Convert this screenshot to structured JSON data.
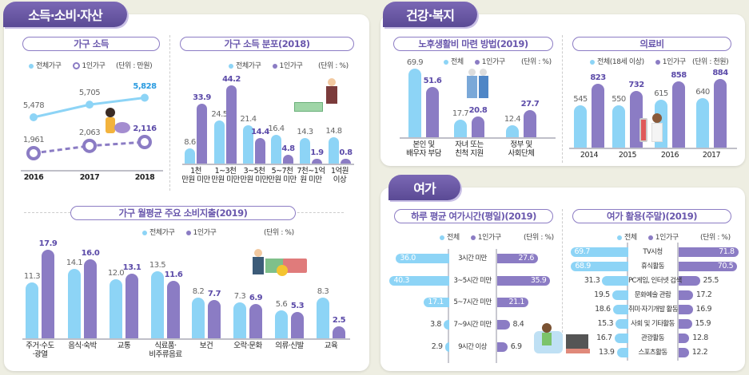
{
  "sections": {
    "income": {
      "tag": "소득·소비·자산"
    },
    "health": {
      "tag": "건강·복지"
    },
    "leisure": {
      "tag": "여가"
    }
  },
  "colors": {
    "all": "#8dd4f6",
    "single": "#8b7cc4",
    "accent_text": "#5b4aa8",
    "tag": "#6a58ad"
  },
  "chart_data": [
    {
      "id": "income",
      "type": "line",
      "title": "가구 소득",
      "unit": "(단위 : 만원)",
      "legend": [
        "전체가구",
        "1인가구"
      ],
      "categories": [
        "2016",
        "2017",
        "2018"
      ],
      "series": [
        {
          "name": "전체가구",
          "values": [
            5478,
            5705,
            5828
          ],
          "labels": [
            "5,478",
            "5,705",
            "5,828"
          ]
        },
        {
          "name": "1인가구",
          "values": [
            1961,
            2063,
            2116
          ],
          "labels": [
            "1,961",
            "2,063",
            "2,116"
          ]
        }
      ]
    },
    {
      "id": "dist",
      "type": "bar",
      "title": "가구 소득 분포(2018)",
      "unit": "(단위 : %)",
      "legend": [
        "전체가구",
        "1인가구"
      ],
      "categories": [
        "1천\n만원 미만",
        "1~3천\n만원 미만",
        "3~5천\n만원 미만",
        "5~7천\n만원 미만",
        "7천~1억\n원 미만",
        "1억원\n이상"
      ],
      "series": [
        {
          "name": "전체가구",
          "values": [
            8.6,
            24.5,
            21.4,
            16.4,
            14.3,
            14.8
          ]
        },
        {
          "name": "1인가구",
          "values": [
            33.9,
            44.2,
            14.4,
            4.8,
            1.9,
            0.8
          ]
        }
      ]
    },
    {
      "id": "spend",
      "type": "bar",
      "title": "가구 월평균 주요 소비지출(2019)",
      "unit": "(단위 : %)",
      "legend": [
        "전체가구",
        "1인가구"
      ],
      "categories": [
        "주거·수도\n·광열",
        "음식·숙박",
        "교통",
        "식료품·\n비주류음료",
        "보건",
        "오락·문화",
        "의류·신발",
        "교육"
      ],
      "series": [
        {
          "name": "전체가구",
          "values": [
            11.3,
            14.1,
            12.0,
            13.5,
            8.2,
            7.3,
            5.6,
            8.3
          ]
        },
        {
          "name": "1인가구",
          "values": [
            17.9,
            16.0,
            13.1,
            11.6,
            7.7,
            6.9,
            5.3,
            2.5
          ]
        }
      ]
    },
    {
      "id": "retire",
      "type": "bar",
      "title": "노후생활비 마련 방법(2019)",
      "unit": "(단위 : %)",
      "legend": [
        "전체",
        "1인가구"
      ],
      "categories": [
        "본인 및\n배우자 부담",
        "자녀 또는\n친척 지원",
        "정부 및\n사회단체"
      ],
      "series": [
        {
          "name": "전체",
          "values": [
            69.9,
            17.7,
            12.4
          ]
        },
        {
          "name": "1인가구",
          "values": [
            51.6,
            20.8,
            27.7
          ]
        }
      ]
    },
    {
      "id": "medical",
      "type": "bar",
      "title": "의료비",
      "unit": "(단위 : 천원)",
      "legend": [
        "전체(18세 이상)",
        "1인가구"
      ],
      "categories": [
        "2014",
        "2015",
        "2016",
        "2017"
      ],
      "series": [
        {
          "name": "전체(18세 이상)",
          "values": [
            545,
            550,
            615,
            640
          ]
        },
        {
          "name": "1인가구",
          "values": [
            823,
            732,
            858,
            884
          ]
        }
      ]
    },
    {
      "id": "leisuretime",
      "type": "bar",
      "orientation": "horizontal-mirrored",
      "title": "하루 평균 여가시간(평일)(2019)",
      "unit": "(단위 : %)",
      "legend": [
        "전체",
        "1인가구"
      ],
      "categories": [
        "3시간 미만",
        "3~5시간 미만",
        "5~7시간 미만",
        "7~9시간 미만",
        "9시간 이상"
      ],
      "series": [
        {
          "name": "전체",
          "values": [
            36.0,
            40.3,
            17.1,
            3.8,
            2.9
          ]
        },
        {
          "name": "1인가구",
          "values": [
            27.6,
            35.9,
            21.1,
            8.4,
            6.9
          ]
        }
      ]
    },
    {
      "id": "leisureuse",
      "type": "bar",
      "orientation": "horizontal-mirrored",
      "title": "여가 활용(주말)(2019)",
      "unit": "(단위 : %)",
      "legend": [
        "전체",
        "1인가구"
      ],
      "categories": [
        "TV시청",
        "휴식활동",
        "PC게임, 인터넷 검색",
        "문화예술 관람",
        "취미·자기개발 활동",
        "사회 및 기타활동",
        "관광활동",
        "스포츠활동"
      ],
      "series": [
        {
          "name": "전체",
          "values": [
            69.7,
            68.9,
            31.3,
            19.5,
            18.6,
            15.3,
            16.7,
            13.9
          ]
        },
        {
          "name": "1인가구",
          "values": [
            71.8,
            70.5,
            25.5,
            17.2,
            16.9,
            15.9,
            12.8,
            12.2
          ]
        }
      ]
    }
  ]
}
